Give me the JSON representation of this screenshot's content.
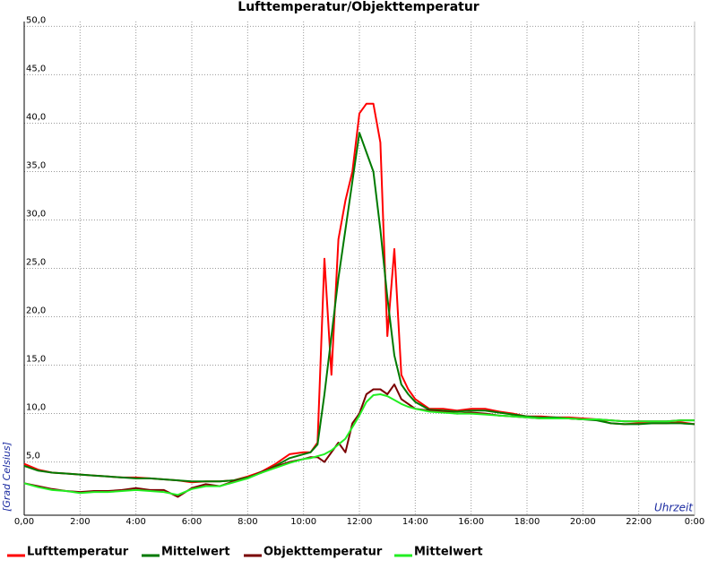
{
  "chart_data": {
    "type": "line",
    "title": "Lufttemperatur/Objekttemperatur",
    "y_label": "[Grad Celsius]",
    "x_label": "Uhrzeit",
    "x": [
      0,
      0.5,
      1,
      1.5,
      2,
      2.5,
      3,
      3.5,
      4,
      4.5,
      5,
      5.5,
      6,
      6.5,
      7,
      7.5,
      8,
      8.5,
      9,
      9.5,
      10,
      10.25,
      10.5,
      10.75,
      11,
      11.25,
      11.5,
      11.75,
      12,
      12.25,
      12.5,
      12.75,
      13,
      13.25,
      13.5,
      13.75,
      14,
      14.5,
      15,
      15.5,
      16,
      16.5,
      17,
      17.5,
      18,
      18.5,
      19,
      19.5,
      20,
      20.5,
      21,
      21.5,
      22,
      22.5,
      23,
      23.5,
      24
    ],
    "series": [
      {
        "name": "Lufttemperatur",
        "color": "#ff0000",
        "values": [
          4.8,
          4.2,
          3.9,
          3.8,
          3.7,
          3.6,
          3.5,
          3.4,
          3.4,
          3.3,
          3.2,
          3.1,
          2.9,
          3.0,
          3.0,
          3.1,
          3.5,
          4.0,
          4.8,
          5.8,
          6.0,
          6.0,
          7.0,
          26,
          14,
          28,
          32,
          35,
          41,
          42,
          42,
          38,
          18,
          27,
          14,
          12.5,
          11.5,
          10.5,
          10.5,
          10.3,
          10.5,
          10.5,
          10.2,
          10,
          9.7,
          9.7,
          9.6,
          9.6,
          9.5,
          9.4,
          9,
          8.9,
          9,
          9,
          9,
          9.1,
          8.9
        ]
      },
      {
        "name": "Mittelwert",
        "color": "#007a00",
        "values": [
          4.6,
          4.1,
          3.9,
          3.8,
          3.7,
          3.6,
          3.5,
          3.4,
          3.3,
          3.3,
          3.2,
          3.1,
          3.0,
          3.0,
          3.0,
          3.1,
          3.4,
          3.9,
          4.6,
          5.4,
          5.8,
          6.0,
          6.8,
          12,
          18,
          24,
          29,
          34,
          39,
          37,
          35,
          29,
          22,
          16,
          13,
          12,
          11.2,
          10.4,
          10.3,
          10.2,
          10.3,
          10.3,
          10.1,
          9.9,
          9.7,
          9.6,
          9.6,
          9.5,
          9.4,
          9.3,
          9.0,
          8.9,
          8.9,
          9.0,
          9.0,
          9.0,
          8.9
        ]
      },
      {
        "name": "Objekttemperatur",
        "color": "#7a0000",
        "values": [
          2.8,
          2.5,
          2.2,
          2.0,
          1.9,
          2.0,
          2.0,
          2.1,
          2.3,
          2.1,
          2.1,
          1.4,
          2.3,
          2.7,
          2.5,
          3.0,
          3.3,
          4.0,
          4.5,
          5.0,
          5.3,
          5.5,
          5.5,
          5.0,
          6.0,
          7.0,
          6.0,
          9.0,
          10.0,
          12.0,
          12.5,
          12.5,
          12.0,
          13.0,
          11.5,
          11.0,
          10.5,
          10.3,
          10.2,
          10.0,
          10.1,
          10.0,
          9.8,
          9.7,
          9.6,
          9.5,
          9.5,
          9.5,
          9.4,
          9.4,
          9.3,
          9.2,
          9.2,
          9.2,
          9.2,
          9.3,
          9.3
        ]
      },
      {
        "name": "Mittelwert",
        "color": "#22ee22",
        "values": [
          2.8,
          2.4,
          2.1,
          2.0,
          1.8,
          1.9,
          1.9,
          2.0,
          2.1,
          2.0,
          1.9,
          1.6,
          2.2,
          2.5,
          2.5,
          2.9,
          3.3,
          3.9,
          4.4,
          4.9,
          5.3,
          5.4,
          5.6,
          5.8,
          6.2,
          6.8,
          7.4,
          8.6,
          9.8,
          11.2,
          11.9,
          12.0,
          11.8,
          11.4,
          11.0,
          10.7,
          10.5,
          10.2,
          10.1,
          10.0,
          10.0,
          9.9,
          9.8,
          9.7,
          9.6,
          9.5,
          9.5,
          9.5,
          9.4,
          9.4,
          9.3,
          9.2,
          9.2,
          9.2,
          9.2,
          9.3,
          9.3
        ]
      }
    ],
    "xlim": [
      0,
      24
    ],
    "xticks": [
      {
        "value": 0,
        "label": "0,00"
      },
      {
        "value": 2,
        "label": "2:00"
      },
      {
        "value": 4,
        "label": "4:00"
      },
      {
        "value": 6,
        "label": "6:00"
      },
      {
        "value": 8,
        "label": "8:00"
      },
      {
        "value": 10,
        "label": "10:00"
      },
      {
        "value": 12,
        "label": "12:00"
      },
      {
        "value": 14,
        "label": "14:00"
      },
      {
        "value": 16,
        "label": "16:00"
      },
      {
        "value": 18,
        "label": "18:00"
      },
      {
        "value": 20,
        "label": "20:00"
      },
      {
        "value": 22,
        "label": "22:00"
      },
      {
        "value": 24,
        "label": "0:00"
      }
    ],
    "ylim": [
      -0.5,
      50.5
    ],
    "yticks": [
      {
        "value": 5,
        "label": "5,0"
      },
      {
        "value": 10,
        "label": "10,0"
      },
      {
        "value": 15,
        "label": "15,0"
      },
      {
        "value": 20,
        "label": "20,0"
      },
      {
        "value": 25,
        "label": "25,0"
      },
      {
        "value": 30,
        "label": "30,0"
      },
      {
        "value": 35,
        "label": "35,0"
      },
      {
        "value": 40,
        "label": "40,0"
      },
      {
        "value": 45,
        "label": "45,0"
      },
      {
        "value": 50,
        "label": "50,0"
      }
    ],
    "grid": true
  }
}
